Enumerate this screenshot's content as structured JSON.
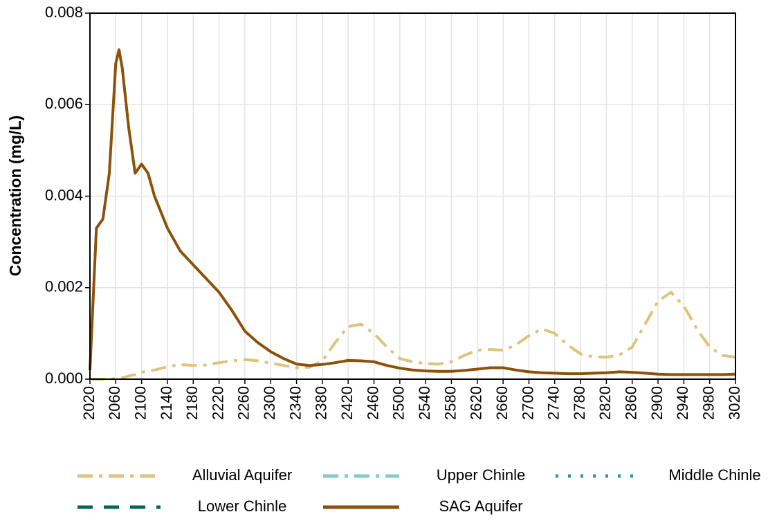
{
  "chart_data": {
    "type": "line",
    "ylabel": "Concentration (mg/L)",
    "x": [
      2020,
      2030,
      2040,
      2050,
      2060,
      2065,
      2070,
      2080,
      2090,
      2100,
      2110,
      2120,
      2140,
      2160,
      2180,
      2200,
      2220,
      2240,
      2260,
      2280,
      2300,
      2320,
      2340,
      2360,
      2380,
      2400,
      2420,
      2440,
      2460,
      2480,
      2500,
      2520,
      2540,
      2560,
      2580,
      2600,
      2620,
      2640,
      2660,
      2680,
      2700,
      2720,
      2740,
      2760,
      2780,
      2800,
      2820,
      2840,
      2860,
      2880,
      2900,
      2920,
      2940,
      2960,
      2980,
      3000,
      3020
    ],
    "series": [
      {
        "name": "Alluvial Aquifer",
        "color": "#dfc27d",
        "values": [
          0,
          0,
          0,
          0,
          1e-05,
          2e-05,
          3e-05,
          7e-05,
          0.0001,
          0.00015,
          0.00018,
          0.0002,
          0.00027,
          0.00032,
          0.0003,
          0.00031,
          0.00036,
          0.0004,
          0.00043,
          0.0004,
          0.00035,
          0.0003,
          0.00025,
          0.00026,
          0.0004,
          0.0008,
          0.00115,
          0.0012,
          0.001,
          0.0007,
          0.00045,
          0.00038,
          0.00034,
          0.00033,
          0.00038,
          0.00052,
          0.00063,
          0.00065,
          0.00063,
          0.00075,
          0.00095,
          0.0011,
          0.001,
          0.00075,
          0.00055,
          0.00049,
          0.00048,
          0.00053,
          0.0007,
          0.0012,
          0.0017,
          0.0019,
          0.0016,
          0.0011,
          0.0007,
          0.00052,
          0.00048
        ]
      },
      {
        "name": "Upper Chinle",
        "color": "#80cdc1",
        "values": [
          null,
          null,
          null,
          null,
          null,
          null,
          null,
          null,
          null,
          null,
          null,
          null,
          null,
          null,
          null,
          null,
          null,
          null,
          null,
          null,
          null,
          null,
          null,
          null,
          null,
          null,
          null,
          null,
          null,
          null,
          null,
          null,
          null,
          null,
          null,
          null,
          null,
          null,
          null,
          null,
          null,
          null,
          null,
          null,
          null,
          null,
          null,
          null,
          null,
          null,
          null,
          null,
          null,
          null,
          null,
          null,
          null
        ]
      },
      {
        "name": "Middle Chinle",
        "color": "#35978f",
        "values": [
          null,
          null,
          null,
          null,
          null,
          null,
          null,
          null,
          null,
          null,
          null,
          null,
          null,
          null,
          null,
          null,
          null,
          null,
          null,
          null,
          null,
          null,
          null,
          null,
          null,
          null,
          null,
          null,
          null,
          null,
          null,
          null,
          null,
          null,
          null,
          null,
          null,
          null,
          null,
          null,
          null,
          null,
          null,
          null,
          null,
          null,
          null,
          null,
          null,
          null,
          null,
          null,
          null,
          null,
          null,
          null,
          null
        ]
      },
      {
        "name": "Lower Chinle",
        "color": "#01665e",
        "values": [
          null,
          null,
          null,
          null,
          null,
          null,
          null,
          null,
          null,
          null,
          null,
          null,
          null,
          null,
          null,
          null,
          null,
          null,
          null,
          null,
          null,
          null,
          null,
          null,
          null,
          null,
          null,
          null,
          null,
          null,
          null,
          null,
          null,
          null,
          null,
          null,
          null,
          null,
          null,
          null,
          null,
          null,
          null,
          null,
          null,
          null,
          null,
          null,
          null,
          null,
          null,
          null,
          null,
          null,
          null,
          null,
          null
        ]
      },
      {
        "name": "SAG Aquifer",
        "color": "#8c510a",
        "values": [
          0.0002,
          0.0033,
          0.0035,
          0.0045,
          0.0069,
          0.0072,
          0.0068,
          0.0055,
          0.0045,
          0.0047,
          0.0045,
          0.004,
          0.0033,
          0.0028,
          0.0025,
          0.0022,
          0.0019,
          0.0015,
          0.00105,
          0.0008,
          0.0006,
          0.00045,
          0.00033,
          0.0003,
          0.00032,
          0.00036,
          0.00041,
          0.0004,
          0.00038,
          0.0003,
          0.00024,
          0.0002,
          0.00018,
          0.00017,
          0.00017,
          0.00019,
          0.00022,
          0.00025,
          0.00025,
          0.0002,
          0.00016,
          0.00014,
          0.00013,
          0.00012,
          0.00012,
          0.00013,
          0.00014,
          0.00016,
          0.00015,
          0.00013,
          0.00011,
          0.0001,
          0.0001,
          0.0001,
          0.0001,
          0.0001,
          0.00011
        ]
      }
    ],
    "xlim": [
      2020,
      3020
    ],
    "xticks": [
      2020,
      2060,
      2100,
      2140,
      2180,
      2220,
      2260,
      2300,
      2340,
      2380,
      2420,
      2460,
      2500,
      2540,
      2580,
      2620,
      2660,
      2700,
      2740,
      2780,
      2820,
      2860,
      2900,
      2940,
      2980,
      3020
    ],
    "ylim": [
      0,
      0.008
    ],
    "yticks": [
      {
        "value": 0,
        "label": "0.000"
      },
      {
        "value": 0.002,
        "label": "0.002"
      },
      {
        "value": 0.004,
        "label": "0.004"
      },
      {
        "value": 0.006,
        "label": "0.006"
      },
      {
        "value": 0.008,
        "label": "0.008"
      }
    ],
    "grid": true,
    "legend": "bottom"
  }
}
